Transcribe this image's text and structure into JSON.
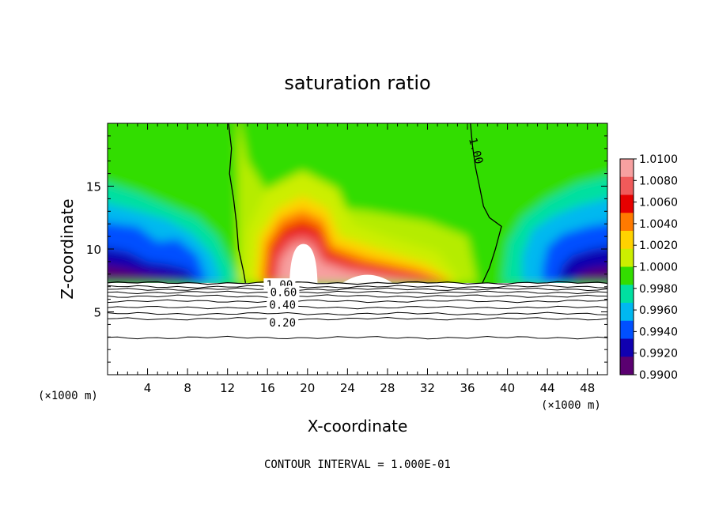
{
  "chart_data": {
    "type": "heatmap",
    "title": "saturation ratio",
    "xlabel": "X-coordinate",
    "ylabel": "Z-coordinate",
    "x_unit_left": "(×1000 m)",
    "x_unit_right": "(×1000 m)",
    "footer": "CONTOUR INTERVAL = 1.000E-01",
    "xlim": [
      0,
      50
    ],
    "ylim": [
      0,
      20
    ],
    "x_ticks": [
      4,
      8,
      12,
      16,
      20,
      24,
      28,
      32,
      36,
      40,
      44,
      48
    ],
    "y_ticks": [
      5,
      10,
      15
    ],
    "colorbar": {
      "min": 0.99,
      "max": 1.01,
      "labels": [
        "1.0100",
        "1.0080",
        "1.0060",
        "1.0040",
        "1.0020",
        "1.0000",
        "0.9980",
        "0.9960",
        "0.9940",
        "0.9920",
        "0.9900"
      ],
      "colors": [
        "#f7a0a0",
        "#f05a5a",
        "#e60000",
        "#ff7a00",
        "#ffd200",
        "#ccee00",
        "#33dd00",
        "#00e0a0",
        "#00b8f0",
        "#0050ff",
        "#1000b0",
        "#5a0070"
      ]
    },
    "contour_labels": [
      {
        "text": "1.00",
        "x": 36.8,
        "z": 17.8
      },
      {
        "text": "1.00",
        "x": 17.2,
        "z": 7.1
      },
      {
        "text": "0.60",
        "x": 17.6,
        "z": 6.5
      },
      {
        "text": "0.40",
        "x": 17.5,
        "z": 5.5
      },
      {
        "text": "0.20",
        "x": 17.5,
        "z": 4.1
      }
    ],
    "contour_1_00": [
      [
        [
          12.1,
          20.0
        ],
        [
          12.4,
          18.0
        ],
        [
          12.2,
          16.0
        ],
        [
          12.6,
          14.0
        ],
        [
          12.9,
          12.0
        ],
        [
          13.1,
          10.0
        ],
        [
          13.6,
          8.2
        ],
        [
          13.8,
          7.3
        ]
      ],
      [
        [
          37.5,
          7.3
        ],
        [
          38.2,
          8.5
        ],
        [
          38.8,
          10.0
        ],
        [
          39.4,
          11.8
        ],
        [
          38.2,
          12.5
        ],
        [
          37.6,
          13.4
        ],
        [
          37.2,
          15.0
        ],
        [
          36.8,
          16.5
        ],
        [
          36.5,
          18.2
        ],
        [
          36.3,
          20.0
        ]
      ]
    ],
    "sub_cloud_contours": [
      {
        "level": 1.0,
        "z": 7.3
      },
      {
        "level": 0.9,
        "z": 7.0
      },
      {
        "level": 0.8,
        "z": 6.8
      },
      {
        "level": 0.7,
        "z": 6.55
      },
      {
        "level": 0.6,
        "z": 6.25
      },
      {
        "level": 0.5,
        "z": 5.85
      },
      {
        "level": 0.4,
        "z": 5.35
      },
      {
        "level": 0.3,
        "z": 4.85
      },
      {
        "level": 0.2,
        "z": 4.45
      },
      {
        "level": 0.1,
        "z": 2.95
      }
    ],
    "features": [
      {
        "name": "supersaturated-core",
        "x_range": [
          15,
          26
        ],
        "z_range": [
          7.5,
          14
        ],
        "max": 1.01
      },
      {
        "name": "subsaturated-left",
        "x_range": [
          0,
          12
        ],
        "z_range": [
          7.3,
          14
        ],
        "min": 0.99
      },
      {
        "name": "subsaturated-right",
        "x_range": [
          40,
          50
        ],
        "z_range": [
          7.3,
          13
        ],
        "min": 0.99
      },
      {
        "name": "unsaturated-below-cloud-base",
        "z_range": [
          0,
          7.3
        ]
      }
    ]
  }
}
